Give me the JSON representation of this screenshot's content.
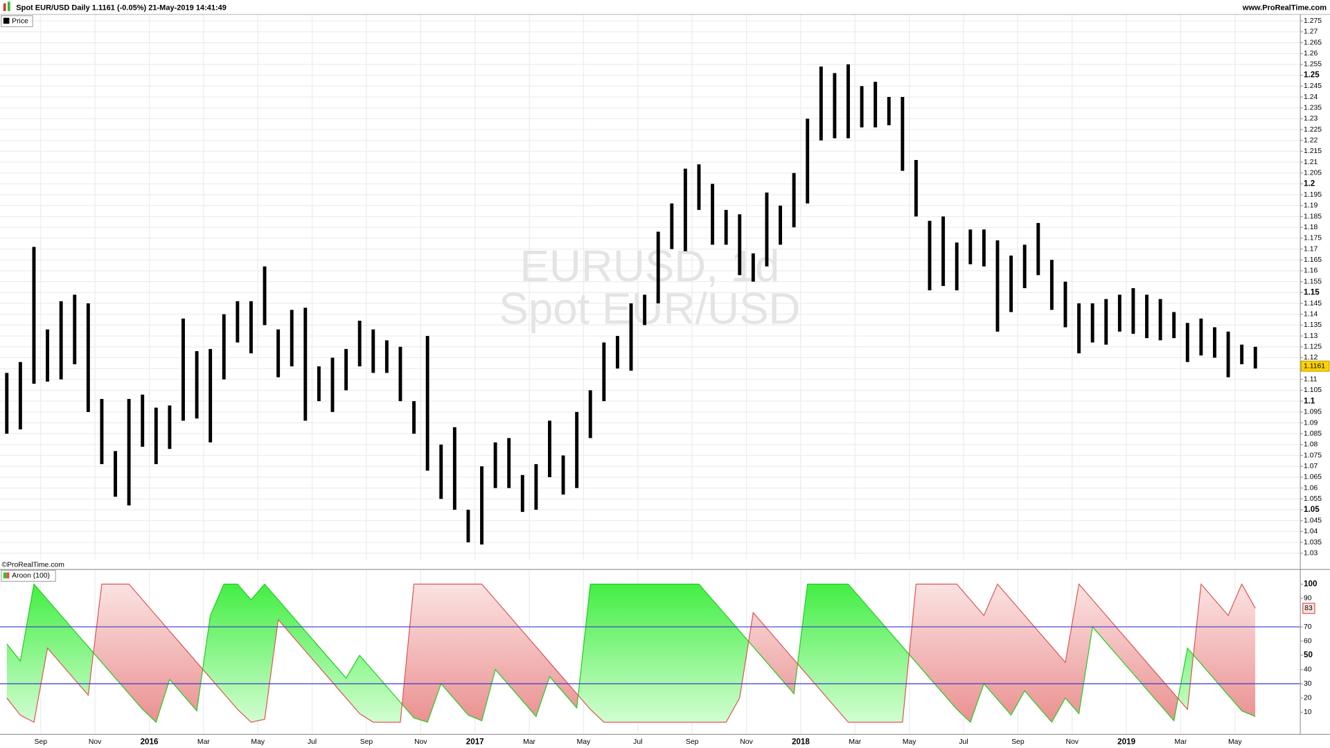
{
  "chart_data": [
    {
      "type": "range-bar",
      "title": "Spot EUR/USD Daily 1.1161 (-0.05%) 21-May-2019 14:41:49",
      "source": "www.ProRealTime.com",
      "copyright": "©ProRealTime.com",
      "watermark": [
        "EURUSD, 1d",
        "Spot EUR/USD"
      ],
      "last": 1.1161,
      "series": [
        {
          "name": "Price",
          "color": "#000000",
          "high": [
            1.113,
            1.118,
            1.171,
            1.133,
            1.146,
            1.149,
            1.145,
            1.101,
            1.077,
            1.101,
            1.103,
            1.097,
            1.098,
            1.138,
            1.123,
            1.124,
            1.14,
            1.146,
            1.146,
            1.162,
            1.133,
            1.142,
            1.143,
            1.116,
            1.12,
            1.124,
            1.137,
            1.133,
            1.128,
            1.125,
            1.1,
            1.13,
            1.08,
            1.088,
            1.05,
            1.07,
            1.081,
            1.083,
            1.066,
            1.071,
            1.091,
            1.075,
            1.095,
            1.105,
            1.127,
            1.13,
            1.145,
            1.149,
            1.178,
            1.191,
            1.207,
            1.209,
            1.2,
            1.188,
            1.186,
            1.168,
            1.196,
            1.19,
            1.205,
            1.23,
            1.254,
            1.251,
            1.255,
            1.245,
            1.247,
            1.24,
            1.24,
            1.211,
            1.183,
            1.185,
            1.173,
            1.179,
            1.179,
            1.174,
            1.167,
            1.172,
            1.182,
            1.165,
            1.155,
            1.145,
            1.145,
            1.147,
            1.149,
            1.152,
            1.149,
            1.147,
            1.141,
            1.136,
            1.138,
            1.134,
            1.132,
            1.126,
            1.125
          ],
          "low": [
            1.085,
            1.087,
            1.108,
            1.109,
            1.11,
            1.117,
            1.095,
            1.071,
            1.056,
            1.052,
            1.079,
            1.071,
            1.078,
            1.091,
            1.092,
            1.081,
            1.11,
            1.127,
            1.122,
            1.135,
            1.111,
            1.116,
            1.091,
            1.1,
            1.095,
            1.105,
            1.116,
            1.113,
            1.113,
            1.1,
            1.085,
            1.068,
            1.055,
            1.05,
            1.035,
            1.034,
            1.06,
            1.06,
            1.049,
            1.05,
            1.065,
            1.057,
            1.06,
            1.083,
            1.1,
            1.115,
            1.114,
            1.135,
            1.145,
            1.17,
            1.169,
            1.188,
            1.172,
            1.172,
            1.158,
            1.155,
            1.162,
            1.172,
            1.18,
            1.191,
            1.22,
            1.221,
            1.221,
            1.226,
            1.226,
            1.227,
            1.206,
            1.185,
            1.151,
            1.153,
            1.151,
            1.163,
            1.162,
            1.132,
            1.141,
            1.152,
            1.158,
            1.142,
            1.134,
            1.122,
            1.127,
            1.126,
            1.132,
            1.131,
            1.129,
            1.128,
            1.129,
            1.118,
            1.121,
            1.12,
            1.111,
            1.117,
            1.115
          ]
        }
      ],
      "ylim": [
        1.027,
        1.278
      ],
      "yticks": [
        1.03,
        1.035,
        1.04,
        1.045,
        1.05,
        1.055,
        1.06,
        1.065,
        1.07,
        1.075,
        1.08,
        1.085,
        1.09,
        1.095,
        1.1,
        1.105,
        1.11,
        1.115,
        1.12,
        1.125,
        1.13,
        1.135,
        1.14,
        1.145,
        1.15,
        1.155,
        1.16,
        1.165,
        1.17,
        1.175,
        1.18,
        1.185,
        1.19,
        1.195,
        1.2,
        1.205,
        1.21,
        1.215,
        1.22,
        1.225,
        1.23,
        1.235,
        1.24,
        1.245,
        1.25,
        1.255,
        1.26,
        1.265,
        1.27,
        1.275
      ],
      "grid": true
    },
    {
      "type": "aroon",
      "title": "Aroon (100)",
      "categories": [
        null,
        null,
        null,
        "Sep",
        null,
        null,
        null,
        "Nov",
        null,
        null,
        null,
        "2016",
        null,
        null,
        null,
        "Mar",
        null,
        null,
        null,
        "May",
        null,
        null,
        null,
        "Jul",
        null,
        null,
        null,
        "Sep",
        null,
        null,
        null,
        "Nov",
        null,
        null,
        null,
        "2017",
        null,
        null,
        null,
        "Mar",
        null,
        null,
        null,
        "May",
        null,
        null,
        null,
        "Jul",
        null,
        null,
        null,
        "Sep",
        null,
        null,
        null,
        "Nov",
        null,
        null,
        null,
        "2018",
        null,
        null,
        null,
        "Mar",
        null,
        null,
        null,
        "May",
        null,
        null,
        null,
        "Jul",
        null,
        null,
        null,
        "Sep",
        null,
        null,
        null,
        "Nov",
        null,
        null,
        null,
        "2019",
        null,
        null,
        null,
        "Mar",
        null,
        null,
        null,
        "May",
        null
      ],
      "series": [
        {
          "color": "#22cc22",
          "values": [
            58,
            46,
            100,
            89,
            78,
            67,
            56,
            45,
            34,
            23,
            12,
            3,
            33,
            22,
            11,
            78,
            100,
            100,
            89,
            100,
            89,
            78,
            67,
            56,
            45,
            34,
            50,
            39,
            28,
            17,
            6,
            3,
            30,
            19,
            8,
            4,
            40,
            29,
            18,
            7,
            35,
            24,
            13,
            100,
            100,
            100,
            100,
            100,
            100,
            100,
            100,
            100,
            89,
            78,
            67,
            56,
            45,
            34,
            23,
            100,
            100,
            100,
            100,
            89,
            78,
            67,
            56,
            45,
            34,
            23,
            12,
            3,
            30,
            19,
            8,
            25,
            14,
            3,
            20,
            9,
            70,
            59,
            48,
            37,
            26,
            15,
            4,
            55,
            44,
            33,
            22,
            11,
            7
          ]
        },
        {
          "color": "#dd5555",
          "last": 83,
          "values": [
            20,
            8,
            3,
            55,
            44,
            33,
            22,
            100,
            100,
            100,
            89,
            78,
            67,
            56,
            45,
            34,
            23,
            12,
            3,
            5,
            75,
            64,
            53,
            42,
            31,
            20,
            9,
            3,
            3,
            3,
            100,
            100,
            100,
            100,
            100,
            100,
            89,
            78,
            67,
            56,
            45,
            34,
            23,
            12,
            3,
            3,
            3,
            3,
            3,
            3,
            3,
            3,
            3,
            3,
            20,
            80,
            69,
            58,
            47,
            36,
            25,
            14,
            3,
            3,
            3,
            3,
            3,
            100,
            100,
            100,
            100,
            89,
            78,
            100,
            89,
            78,
            67,
            56,
            45,
            100,
            89,
            78,
            67,
            56,
            45,
            34,
            23,
            12,
            100,
            89,
            78,
            100,
            83
          ]
        }
      ],
      "levels": [
        70,
        30
      ],
      "ylim": [
        -5,
        110
      ],
      "yticks": [
        100,
        90,
        70,
        60,
        50,
        40,
        30,
        20,
        10
      ]
    }
  ]
}
